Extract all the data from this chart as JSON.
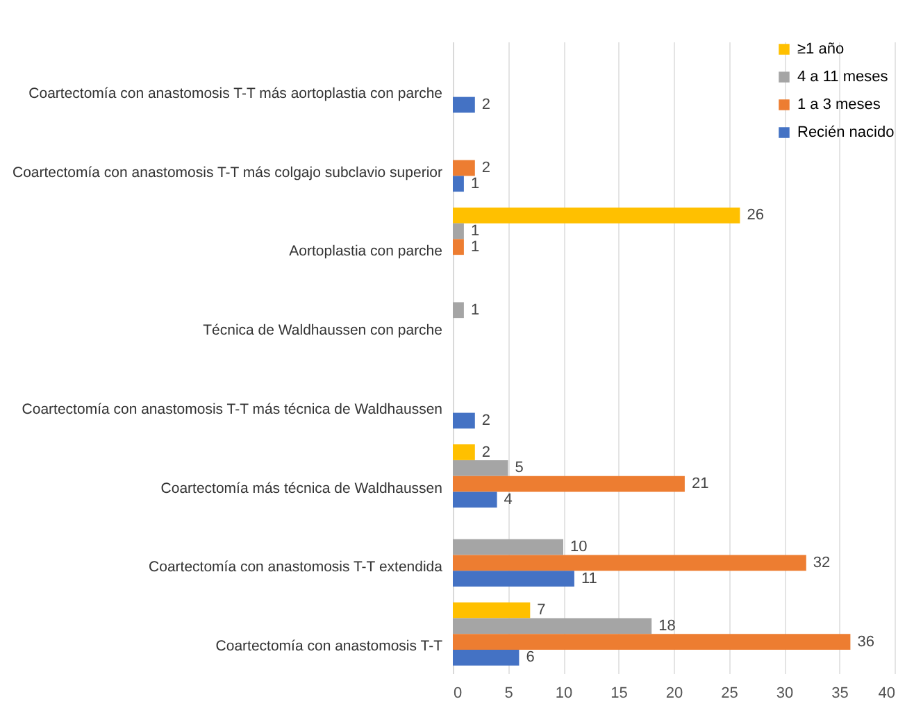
{
  "chart_data": {
    "type": "bar",
    "orientation": "horizontal",
    "categories": [
      "Coartectomía con anastomosis T-T más aortoplastia con parche",
      "Coartectomía con anastomosis T-T más colgajo subclavio superior",
      "Aortoplastia con parche",
      "Técnica de Waldhaussen con parche",
      "Coartectomía con anastomosis T-T más técnica de Waldhaussen",
      "Coartectomía más técnica de Waldhaussen",
      "Coartectomía con anastomosis T-T extendida",
      "Coartectomía con anastomosis T-T"
    ],
    "series": [
      {
        "name": "≥1 año",
        "color": "#ffc000",
        "values": [
          null,
          null,
          26,
          null,
          null,
          2,
          null,
          7
        ]
      },
      {
        "name": "4 a 11 meses",
        "color": "#a5a5a5",
        "values": [
          null,
          null,
          1,
          1,
          null,
          5,
          10,
          18
        ]
      },
      {
        "name": "1 a 3 meses",
        "color": "#ed7d31",
        "values": [
          null,
          2,
          1,
          null,
          null,
          21,
          32,
          36
        ]
      },
      {
        "name": "Recién nacido",
        "color": "#4472c4",
        "values": [
          2,
          1,
          null,
          null,
          2,
          4,
          11,
          6
        ]
      }
    ],
    "xlim": [
      0,
      40
    ],
    "xticks": [
      0,
      5,
      10,
      15,
      20,
      25,
      30,
      35,
      40
    ],
    "grid": "x",
    "legend": "top right",
    "data_labels": true
  }
}
